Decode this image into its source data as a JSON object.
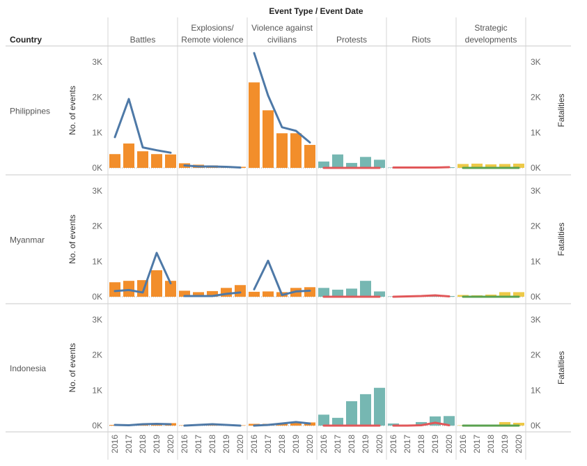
{
  "header": {
    "columns_title": "Event Type / Event Date",
    "rows_title": "Country"
  },
  "chart_data": {
    "type": "bar",
    "event_types": [
      "Battles",
      "Explosions/ Remote violence",
      "Violence against civilians",
      "Protests",
      "Riots",
      "Strategic developments"
    ],
    "event_type_lines": [
      [
        "Battles"
      ],
      [
        "Explosions/",
        "Remote violence"
      ],
      [
        "Violence against",
        "civilians"
      ],
      [
        "Protests"
      ],
      [
        "Riots"
      ],
      [
        "Strategic",
        "developments"
      ]
    ],
    "years": [
      "2016",
      "2017",
      "2018",
      "2019",
      "2020"
    ],
    "countries": [
      "Philippines",
      "Myanmar",
      "Indonesia"
    ],
    "left_axis_label": "No. of events",
    "right_axis_label": "Fatalities",
    "y_ticks": [
      "0K",
      "1K",
      "2K",
      "3K"
    ],
    "ylim": [
      0,
      3400
    ],
    "colors": {
      "Battles": "#f28e2b",
      "Explosions/ Remote violence": "#f28e2b",
      "Violence against civilians": "#f28e2b",
      "Protests": "#76b7b2",
      "Riots": "#76b7b2",
      "Strategic developments": "#edc948",
      "line_Battles": "#4e79a7",
      "line_Explosions/ Remote violence": "#4e79a7",
      "line_Violence against civilians": "#4e79a7",
      "line_Protests": "#e15759",
      "line_Riots": "#e15759",
      "line_Strategic developments": "#59a14f"
    },
    "events": {
      "Philippines": [
        [
          390,
          690,
          470,
          390,
          380
        ],
        [
          130,
          90,
          70,
          50,
          30
        ],
        [
          2420,
          1630,
          980,
          980,
          650
        ],
        [
          180,
          380,
          140,
          310,
          230
        ],
        [
          10,
          10,
          10,
          10,
          20
        ],
        [
          110,
          120,
          100,
          110,
          120
        ]
      ],
      "Myanmar": [
        [
          410,
          450,
          470,
          750,
          450
        ],
        [
          170,
          130,
          160,
          250,
          330
        ],
        [
          140,
          150,
          130,
          250,
          270
        ],
        [
          250,
          200,
          230,
          450,
          150
        ],
        [
          10,
          10,
          10,
          20,
          20
        ],
        [
          50,
          40,
          60,
          130,
          130
        ]
      ],
      "Indonesia": [
        [
          20,
          40,
          60,
          60,
          70
        ],
        [
          10,
          30,
          40,
          20,
          10
        ],
        [
          50,
          50,
          50,
          80,
          90
        ],
        [
          310,
          220,
          690,
          890,
          1070
        ],
        [
          60,
          30,
          100,
          260,
          270
        ],
        [
          10,
          20,
          20,
          100,
          80
        ]
      ]
    },
    "fatalities": {
      "Philippines": [
        [
          870,
          1950,
          580,
          500,
          430
        ],
        [
          70,
          40,
          40,
          30,
          10
        ],
        [
          3250,
          2050,
          1150,
          1050,
          720
        ],
        [
          0,
          0,
          0,
          0,
          0
        ],
        [
          10,
          10,
          10,
          10,
          20
        ],
        [
          0,
          0,
          0,
          0,
          0
        ]
      ],
      "Myanmar": [
        [
          160,
          190,
          120,
          1240,
          380
        ],
        [
          20,
          20,
          20,
          80,
          120
        ],
        [
          210,
          1020,
          50,
          150,
          170
        ],
        [
          0,
          0,
          0,
          0,
          0
        ],
        [
          0,
          10,
          20,
          40,
          10
        ],
        [
          0,
          0,
          0,
          0,
          0
        ]
      ],
      "Indonesia": [
        [
          20,
          10,
          40,
          50,
          40
        ],
        [
          0,
          20,
          40,
          20,
          0
        ],
        [
          0,
          20,
          60,
          100,
          60
        ],
        [
          0,
          0,
          0,
          0,
          0
        ],
        [
          0,
          0,
          10,
          80,
          10
        ],
        [
          0,
          0,
          0,
          0,
          0
        ]
      ]
    }
  }
}
